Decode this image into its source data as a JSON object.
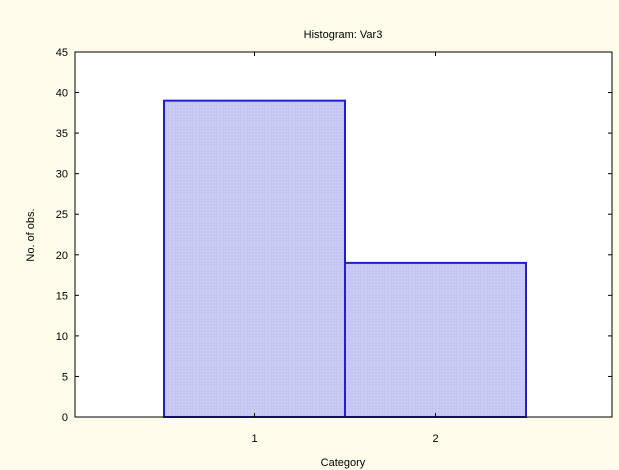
{
  "chart_data": {
    "type": "bar",
    "title": "Histogram: Var3",
    "xlabel": "Category",
    "ylabel": "No. of obs.",
    "categories": [
      "1",
      "2"
    ],
    "values": [
      39,
      19
    ],
    "ylim": [
      0,
      45
    ],
    "yticks": [
      "0",
      "5",
      "10",
      "15",
      "20",
      "25",
      "30",
      "35",
      "40",
      "45"
    ],
    "grid": false,
    "legend": "none",
    "colors": {
      "bar_fill": "#c9c9f2",
      "bar_edge": "#1f1fd0",
      "background": "#fdfbea",
      "plot_area": "#ffffff"
    }
  }
}
